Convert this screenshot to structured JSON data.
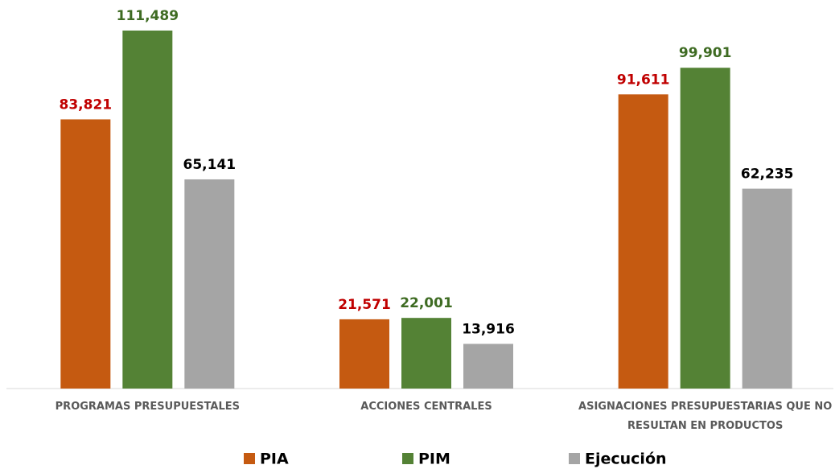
{
  "chart_data": {
    "type": "bar",
    "categories": [
      "PROGRAMAS PRESUPUESTALES",
      "ACCIONES CENTRALES",
      "ASIGNACIONES PRESUPUESTARIAS QUE NO RESULTAN EN PRODUCTOS"
    ],
    "series": [
      {
        "name": "PIA",
        "color": "#c55a11",
        "label_color": "#c00000",
        "values": [
          83821,
          21571,
          91611
        ],
        "value_labels": [
          "83,821",
          "21,571",
          "91,611"
        ]
      },
      {
        "name": "PIM",
        "color": "#548235",
        "label_color": "#3e6b22",
        "values": [
          111489,
          22001,
          99901
        ],
        "value_labels": [
          "111,489",
          "22,001",
          "99,901"
        ]
      },
      {
        "name": "Ejecución",
        "color": "#a5a5a5",
        "label_color": "#000000",
        "values": [
          65141,
          13916,
          62235
        ],
        "value_labels": [
          "65,141",
          "13,916",
          "62,235"
        ]
      }
    ],
    "ylim": [
      0,
      120000
    ],
    "legend": "bottom"
  }
}
